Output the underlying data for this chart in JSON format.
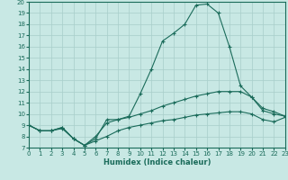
{
  "xlabel": "Humidex (Indice chaleur)",
  "xlim": [
    0,
    23
  ],
  "ylim": [
    7,
    20
  ],
  "yticks": [
    7,
    8,
    9,
    10,
    11,
    12,
    13,
    14,
    15,
    16,
    17,
    18,
    19,
    20
  ],
  "xticks": [
    0,
    1,
    2,
    3,
    4,
    5,
    6,
    7,
    8,
    9,
    10,
    11,
    12,
    13,
    14,
    15,
    16,
    17,
    18,
    19,
    20,
    21,
    22,
    23
  ],
  "bg_color": "#c8e8e4",
  "grid_color": "#a8ceca",
  "line_color": "#1a6b5a",
  "line1_x": [
    0,
    1,
    2,
    3,
    4,
    5,
    6,
    7,
    8,
    9,
    10,
    11,
    12,
    13,
    14,
    15,
    16,
    17,
    18,
    19,
    20,
    21,
    22,
    23
  ],
  "line1_y": [
    9.0,
    8.5,
    8.5,
    8.8,
    7.8,
    7.2,
    7.8,
    9.5,
    9.5,
    9.8,
    11.8,
    14.0,
    16.5,
    17.2,
    18.0,
    19.7,
    19.8,
    19.0,
    16.0,
    12.5,
    11.5,
    10.5,
    10.2,
    9.8
  ],
  "line2_x": [
    0,
    1,
    2,
    3,
    4,
    5,
    6,
    7,
    8,
    9,
    10,
    11,
    12,
    13,
    14,
    15,
    16,
    17,
    18,
    19,
    20,
    21,
    22,
    23
  ],
  "line2_y": [
    9.0,
    8.5,
    8.5,
    8.8,
    7.8,
    7.2,
    8.0,
    9.2,
    9.5,
    9.7,
    10.0,
    10.3,
    10.7,
    11.0,
    11.3,
    11.6,
    11.8,
    12.0,
    12.0,
    12.0,
    11.5,
    10.3,
    10.0,
    9.8
  ],
  "line3_x": [
    0,
    1,
    2,
    3,
    4,
    5,
    6,
    7,
    8,
    9,
    10,
    11,
    12,
    13,
    14,
    15,
    16,
    17,
    18,
    19,
    20,
    21,
    22,
    23
  ],
  "line3_y": [
    9.0,
    8.5,
    8.5,
    8.7,
    7.8,
    7.2,
    7.6,
    8.0,
    8.5,
    8.8,
    9.0,
    9.2,
    9.4,
    9.5,
    9.7,
    9.9,
    10.0,
    10.1,
    10.2,
    10.2,
    10.0,
    9.5,
    9.3,
    9.7
  ]
}
